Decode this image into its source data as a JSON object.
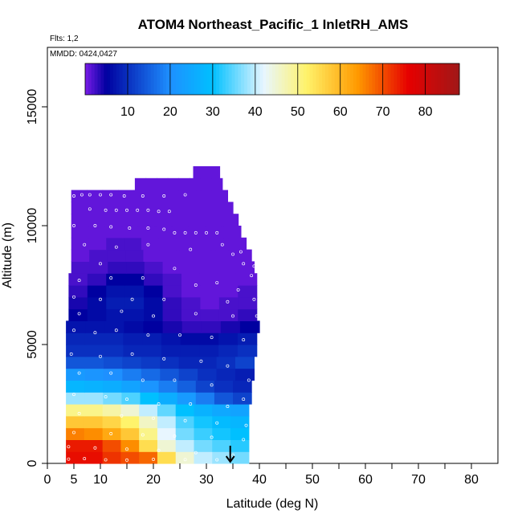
{
  "chart_data": {
    "type": "heatmap",
    "title": "ATOM4 Northeast_Pacific_1 InletRH_AMS",
    "flights_note": "Flts: 1,2",
    "dates_note": "MMDD: 0424,0427",
    "xlabel": "Latitude (deg N)",
    "ylabel": "Altitude (m)",
    "xlim": [
      0,
      85
    ],
    "ylim": [
      0,
      17500
    ],
    "x_ticks": [
      0,
      5,
      10,
      20,
      30,
      40,
      50,
      60,
      70,
      80
    ],
    "y_ticks": [
      0,
      5000,
      10000,
      15000
    ],
    "colorbar": {
      "range": [
        0,
        88
      ],
      "ticks": [
        10,
        20,
        30,
        40,
        50,
        60,
        70,
        80
      ],
      "colors": [
        "#7a1ce8",
        "#0000a0",
        "#1e90ff",
        "#00c0ff",
        "#e8f6ff",
        "#fff36b",
        "#ff9a00",
        "#e60000",
        "#a01818"
      ],
      "stops": [
        0,
        5,
        20,
        30,
        42,
        52,
        64,
        76,
        88
      ]
    },
    "arrow_latitude": 34.5,
    "rows": [
      {
        "alt": 250,
        "x0": 3.5,
        "x1": 38,
        "values": [
          75,
          75,
          72,
          70,
          68,
          55,
          45,
          40,
          38,
          36
        ]
      },
      {
        "alt": 750,
        "x0": 3.5,
        "x1": 38,
        "values": [
          74,
          74,
          70,
          65,
          55,
          45,
          40,
          36,
          34,
          32
        ]
      },
      {
        "alt": 1250,
        "x0": 3.5,
        "x1": 38,
        "values": [
          66,
          65,
          62,
          58,
          50,
          42,
          36,
          33,
          31,
          30
        ]
      },
      {
        "alt": 1750,
        "x0": 3.5,
        "x1": 38,
        "values": [
          58,
          58,
          56,
          52,
          46,
          40,
          34,
          31,
          29,
          28
        ]
      },
      {
        "alt": 2250,
        "x0": 3.5,
        "x1": 38,
        "values": [
          50,
          50,
          48,
          45,
          40,
          35,
          30,
          27,
          25,
          24
        ]
      },
      {
        "alt": 2750,
        "x0": 3.5,
        "x1": 38.5,
        "values": [
          38,
          38,
          36,
          34,
          30,
          26,
          22,
          18,
          14,
          12
        ]
      },
      {
        "alt": 3250,
        "x0": 3.5,
        "x1": 38.5,
        "values": [
          28,
          27,
          26,
          24,
          21,
          18,
          15,
          12,
          10,
          9
        ]
      },
      {
        "alt": 3750,
        "x0": 3.5,
        "x1": 39,
        "values": [
          22,
          21,
          20,
          18,
          16,
          14,
          12,
          10,
          9,
          8
        ]
      },
      {
        "alt": 4250,
        "x0": 3.5,
        "x1": 39,
        "values": [
          14,
          14,
          13,
          12,
          11,
          10,
          9,
          9,
          10,
          12
        ]
      },
      {
        "alt": 4750,
        "x0": 3.5,
        "x1": 39.5,
        "values": [
          10,
          10,
          10,
          9,
          9,
          8,
          8,
          8,
          9,
          10
        ]
      },
      {
        "alt": 5250,
        "x0": 3.5,
        "x1": 39.5,
        "values": [
          9,
          9,
          9,
          8,
          8,
          7,
          6,
          6,
          7,
          8
        ]
      },
      {
        "alt": 5750,
        "x0": 3.5,
        "x1": 40,
        "values": [
          7,
          7,
          7,
          6,
          5,
          4,
          3,
          3,
          4,
          5
        ]
      },
      {
        "alt": 6250,
        "x0": 4,
        "x1": 39.5,
        "values": [
          5,
          6,
          7,
          7,
          6,
          3,
          2,
          2,
          2,
          3
        ]
      },
      {
        "alt": 6750,
        "x0": 4,
        "x1": 39.5,
        "values": [
          4,
          6,
          8,
          8,
          6,
          3,
          2,
          1,
          2,
          2
        ]
      },
      {
        "alt": 7250,
        "x0": 4,
        "x1": 39.5,
        "values": [
          3,
          5,
          7,
          7,
          5,
          2,
          1,
          1,
          1,
          2
        ]
      },
      {
        "alt": 7750,
        "x0": 4,
        "x1": 39.5,
        "values": [
          2,
          3,
          5,
          5,
          3,
          2,
          1,
          1,
          1,
          1
        ]
      },
      {
        "alt": 8250,
        "x0": 4.5,
        "x1": 39,
        "values": [
          2,
          2,
          3,
          3,
          2,
          1,
          1,
          1,
          1,
          1
        ]
      },
      {
        "alt": 8750,
        "x0": 4.5,
        "x1": 38.5,
        "values": [
          1,
          2,
          2,
          2,
          1,
          1,
          1,
          1,
          1,
          1
        ]
      },
      {
        "alt": 9250,
        "x0": 4.5,
        "x1": 37.5,
        "values": [
          1,
          1,
          2,
          2,
          1,
          1,
          1,
          1,
          1,
          1
        ]
      },
      {
        "alt": 9750,
        "x0": 4.5,
        "x1": 36.5,
        "values": [
          1,
          1,
          1,
          1,
          1,
          1,
          1,
          1,
          1,
          1
        ]
      },
      {
        "alt": 10250,
        "x0": 4.5,
        "x1": 36,
        "values": [
          1,
          1,
          1,
          1,
          1,
          1,
          1,
          1,
          1,
          1
        ]
      },
      {
        "alt": 10750,
        "x0": 4.5,
        "x1": 35,
        "values": [
          1,
          1,
          1,
          1,
          1,
          1,
          1,
          1,
          1,
          1
        ]
      },
      {
        "alt": 11250,
        "x0": 4.5,
        "x1": 34,
        "values": [
          1,
          1,
          1,
          1,
          1,
          1,
          1,
          1,
          1,
          1
        ]
      },
      {
        "alt": 11750,
        "x0": 16.5,
        "x1": 33,
        "values": [
          1,
          1,
          1,
          1,
          1,
          1,
          1,
          1
        ]
      },
      {
        "alt": 12250,
        "x0": 27.5,
        "x1": 32.5,
        "values": [
          1,
          1,
          1
        ]
      }
    ],
    "points": [
      [
        5,
        11250
      ],
      [
        6.5,
        11300
      ],
      [
        8,
        11300
      ],
      [
        10,
        11300
      ],
      [
        12,
        11300
      ],
      [
        14.5,
        11250
      ],
      [
        18,
        11250
      ],
      [
        22,
        11250
      ],
      [
        26,
        11300
      ],
      [
        8,
        10700
      ],
      [
        11,
        10650
      ],
      [
        13,
        10650
      ],
      [
        15,
        10650
      ],
      [
        17,
        10650
      ],
      [
        19,
        10650
      ],
      [
        21,
        10600
      ],
      [
        23,
        10600
      ],
      [
        5,
        10000
      ],
      [
        9,
        10000
      ],
      [
        12,
        9950
      ],
      [
        15.5,
        9900
      ],
      [
        19,
        9900
      ],
      [
        22,
        9850
      ],
      [
        24,
        9700
      ],
      [
        26,
        9700
      ],
      [
        28,
        9700
      ],
      [
        30,
        9700
      ],
      [
        32,
        9700
      ],
      [
        7,
        9200
      ],
      [
        13,
        9100
      ],
      [
        19,
        9200
      ],
      [
        27,
        9000
      ],
      [
        33,
        9200
      ],
      [
        35,
        8800
      ],
      [
        36.5,
        8900
      ],
      [
        10,
        8400
      ],
      [
        24,
        8200
      ],
      [
        37,
        8400
      ],
      [
        39,
        8300
      ],
      [
        38.5,
        7900
      ],
      [
        6,
        7700
      ],
      [
        12,
        7800
      ],
      [
        18,
        7800
      ],
      [
        28,
        7500
      ],
      [
        32,
        7600
      ],
      [
        36,
        7300
      ],
      [
        5,
        7000
      ],
      [
        10,
        6900
      ],
      [
        16,
        6900
      ],
      [
        22,
        6900
      ],
      [
        34,
        6800
      ],
      [
        39,
        6900
      ],
      [
        6,
        6300
      ],
      [
        14,
        6400
      ],
      [
        20,
        6200
      ],
      [
        28,
        6300
      ],
      [
        35,
        6200
      ],
      [
        39.5,
        6200
      ],
      [
        5,
        5600
      ],
      [
        9,
        5500
      ],
      [
        13,
        5600
      ],
      [
        19,
        5400
      ],
      [
        25,
        5400
      ],
      [
        31,
        5300
      ],
      [
        37,
        5200
      ],
      [
        40,
        5000
      ],
      [
        4.5,
        4600
      ],
      [
        10,
        4500
      ],
      [
        16,
        4600
      ],
      [
        22,
        4400
      ],
      [
        29,
        4300
      ],
      [
        34,
        4100
      ],
      [
        6,
        3800
      ],
      [
        12,
        3800
      ],
      [
        18,
        3500
      ],
      [
        24,
        3500
      ],
      [
        31,
        3300
      ],
      [
        38,
        3500
      ],
      [
        5,
        2900
      ],
      [
        11,
        2800
      ],
      [
        15,
        2700
      ],
      [
        21,
        2500
      ],
      [
        27,
        2500
      ],
      [
        34,
        2400
      ],
      [
        37,
        2700
      ],
      [
        6,
        2100
      ],
      [
        14,
        2000
      ],
      [
        20,
        1900
      ],
      [
        26,
        1800
      ],
      [
        32,
        1700
      ],
      [
        37.5,
        1600
      ],
      [
        5,
        1300
      ],
      [
        12,
        1250
      ],
      [
        18,
        1200
      ],
      [
        24,
        1150
      ],
      [
        31,
        1100
      ],
      [
        37,
        1000
      ],
      [
        4,
        700
      ],
      [
        9,
        650
      ],
      [
        15,
        600
      ],
      [
        21,
        550
      ],
      [
        28,
        450
      ],
      [
        35,
        350
      ],
      [
        4,
        180
      ],
      [
        7,
        200
      ],
      [
        11,
        150
      ],
      [
        15,
        140
      ],
      [
        20,
        170
      ],
      [
        26,
        160
      ],
      [
        32,
        150
      ]
    ]
  }
}
